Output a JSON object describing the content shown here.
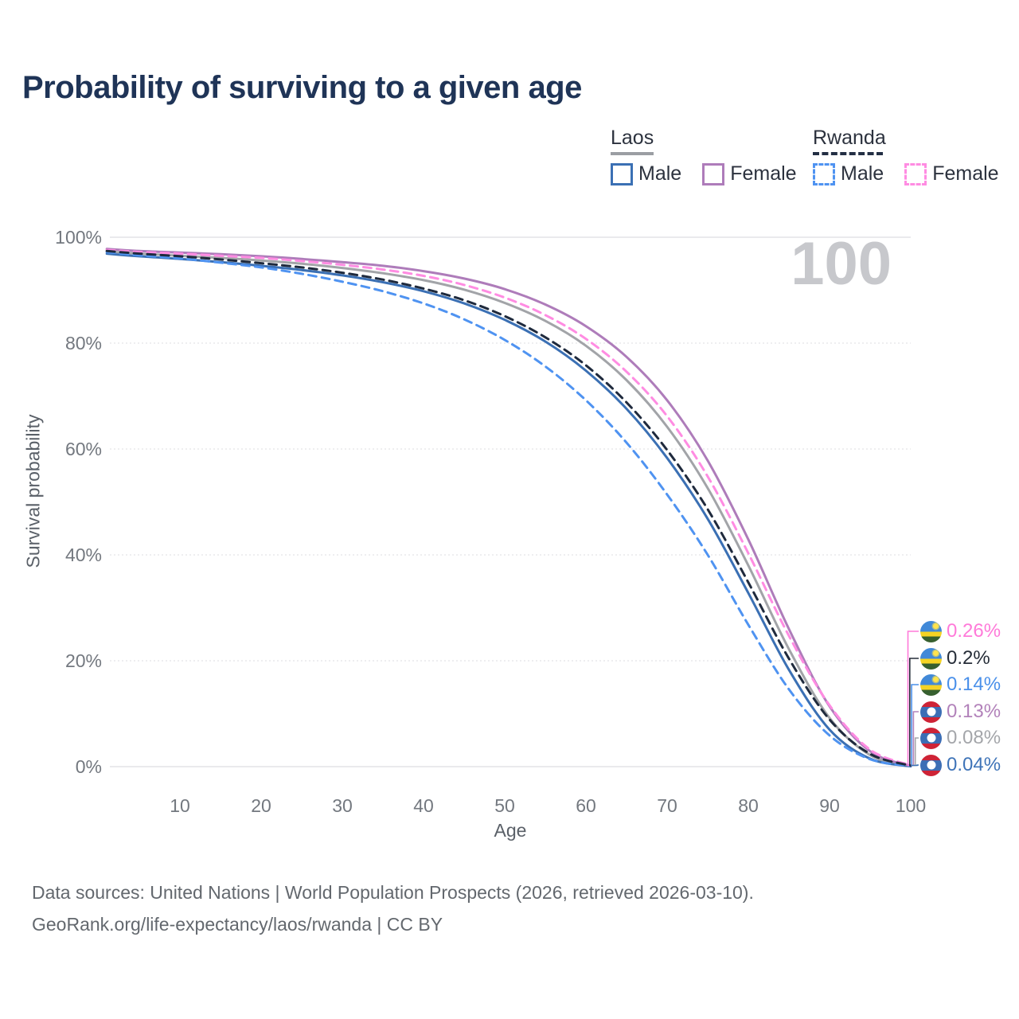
{
  "title": "Probability of surviving to a given age",
  "legend": {
    "groups": [
      {
        "country": "Laos",
        "line_style": "solid",
        "underline_color": "#9b9ea3",
        "items": [
          {
            "label": "Male",
            "color": "#3b70b4",
            "dash": false
          },
          {
            "label": "Female",
            "color": "#ae7cba",
            "dash": false
          }
        ]
      },
      {
        "country": "Rwanda",
        "line_style": "dashed",
        "underline_color": "#232f44",
        "items": [
          {
            "label": "Male",
            "color": "#4f93f1",
            "dash": true
          },
          {
            "label": "Female",
            "color": "#ff8ce2",
            "dash": true
          }
        ]
      }
    ]
  },
  "plot": {
    "age_indicator": "100",
    "y_axis_title": "Survival probability",
    "x_axis_title": "Age"
  },
  "chart_data": {
    "type": "line",
    "title": "Probability of surviving to a given age",
    "xlabel": "Age",
    "ylabel": "Survival probability",
    "xlim": [
      1,
      100
    ],
    "ylim": [
      0,
      100
    ],
    "grid": "horizontal",
    "legend_position": "top-right",
    "x_ticks": [
      10,
      20,
      30,
      40,
      50,
      60,
      70,
      80,
      90,
      100
    ],
    "y_ticks": [
      0,
      20,
      40,
      60,
      80,
      100
    ],
    "y_tick_suffix": "%",
    "x": [
      1,
      5,
      10,
      15,
      20,
      25,
      30,
      35,
      40,
      45,
      50,
      55,
      60,
      65,
      70,
      75,
      80,
      85,
      90,
      95,
      100
    ],
    "series": [
      {
        "id": "laos-both",
        "name": "Laos (both sexes)",
        "country": "Laos",
        "sex": "Both",
        "color": "#a2a4a8",
        "dash": false,
        "values": [
          97.3,
          96.9,
          96.5,
          96.1,
          95.6,
          95.0,
          94.2,
          93.2,
          91.9,
          90.1,
          87.6,
          84.2,
          79.5,
          73.0,
          64.2,
          52.6,
          38.0,
          22.2,
          9.2,
          2.2,
          0.08
        ]
      },
      {
        "id": "laos-male",
        "name": "Laos Male",
        "country": "Laos",
        "sex": "Male",
        "color": "#3b70b4",
        "dash": false,
        "values": [
          96.9,
          96.4,
          95.9,
          95.3,
          94.6,
          93.8,
          92.8,
          91.5,
          89.8,
          87.5,
          84.4,
          80.3,
          74.8,
          67.6,
          58.3,
          46.8,
          32.8,
          18.3,
          7.0,
          1.5,
          0.04
        ]
      },
      {
        "id": "laos-female",
        "name": "Laos Female",
        "country": "Laos",
        "sex": "Female",
        "color": "#ae7cba",
        "dash": false,
        "values": [
          97.8,
          97.4,
          97.1,
          96.8,
          96.4,
          95.9,
          95.3,
          94.6,
          93.6,
          92.2,
          90.2,
          87.3,
          83.2,
          77.4,
          69.2,
          57.8,
          42.9,
          26.0,
          11.4,
          2.9,
          0.13
        ]
      },
      {
        "id": "rwanda-male",
        "name": "Rwanda Male",
        "country": "Rwanda",
        "sex": "Male",
        "color": "#4f93f1",
        "dash": true,
        "values": [
          97.2,
          96.6,
          96.0,
          95.2,
          94.3,
          93.1,
          91.6,
          89.8,
          87.5,
          84.5,
          80.6,
          75.6,
          69.2,
          61.2,
          51.4,
          40.0,
          26.8,
          14.6,
          5.9,
          1.4,
          0.14
        ]
      },
      {
        "id": "rwanda-female",
        "name": "Rwanda Female",
        "country": "Rwanda",
        "sex": "Female",
        "color": "#ff8ce2",
        "dash": true,
        "values": [
          97.6,
          97.2,
          96.9,
          96.5,
          96.1,
          95.5,
          94.8,
          93.9,
          92.7,
          91.0,
          88.6,
          85.3,
          80.8,
          74.6,
          66.2,
          54.8,
          40.3,
          24.7,
          11.6,
          3.2,
          0.26
        ]
      },
      {
        "id": "rwanda-both",
        "name": "Rwanda (both sexes)",
        "country": "Rwanda",
        "sex": "Both",
        "color": "#1f2a3d",
        "dash": true,
        "values": [
          97.4,
          96.9,
          96.4,
          95.8,
          95.1,
          94.3,
          93.3,
          92.0,
          90.3,
          88.1,
          85.1,
          81.1,
          75.8,
          68.8,
          59.8,
          48.6,
          34.8,
          20.4,
          8.9,
          2.4,
          0.2
        ]
      }
    ]
  },
  "end_labels": [
    {
      "text": "0.26%",
      "color": "#ff7ad9",
      "flag": "rwanda",
      "series": "Rwanda Female"
    },
    {
      "text": "0.2%",
      "color": "#262d38",
      "flag": "rwanda",
      "series": "Rwanda (both sexes)"
    },
    {
      "text": "0.14%",
      "color": "#4a90ea",
      "flag": "rwanda",
      "series": "Rwanda Male"
    },
    {
      "text": "0.13%",
      "color": "#b282ba",
      "flag": "laos",
      "series": "Laos Female"
    },
    {
      "text": "0.08%",
      "color": "#a4a6aa",
      "flag": "laos",
      "series": "Laos (both sexes)"
    },
    {
      "text": "0.04%",
      "color": "#3f74b8",
      "flag": "laos",
      "series": "Laos Male"
    }
  ],
  "footer": {
    "line1": "Data sources: United Nations | World Population Prospects (2026, retrieved 2026-03-10).",
    "line2": "GeoRank.org/life-expectancy/laos/rwanda | CC BY"
  }
}
